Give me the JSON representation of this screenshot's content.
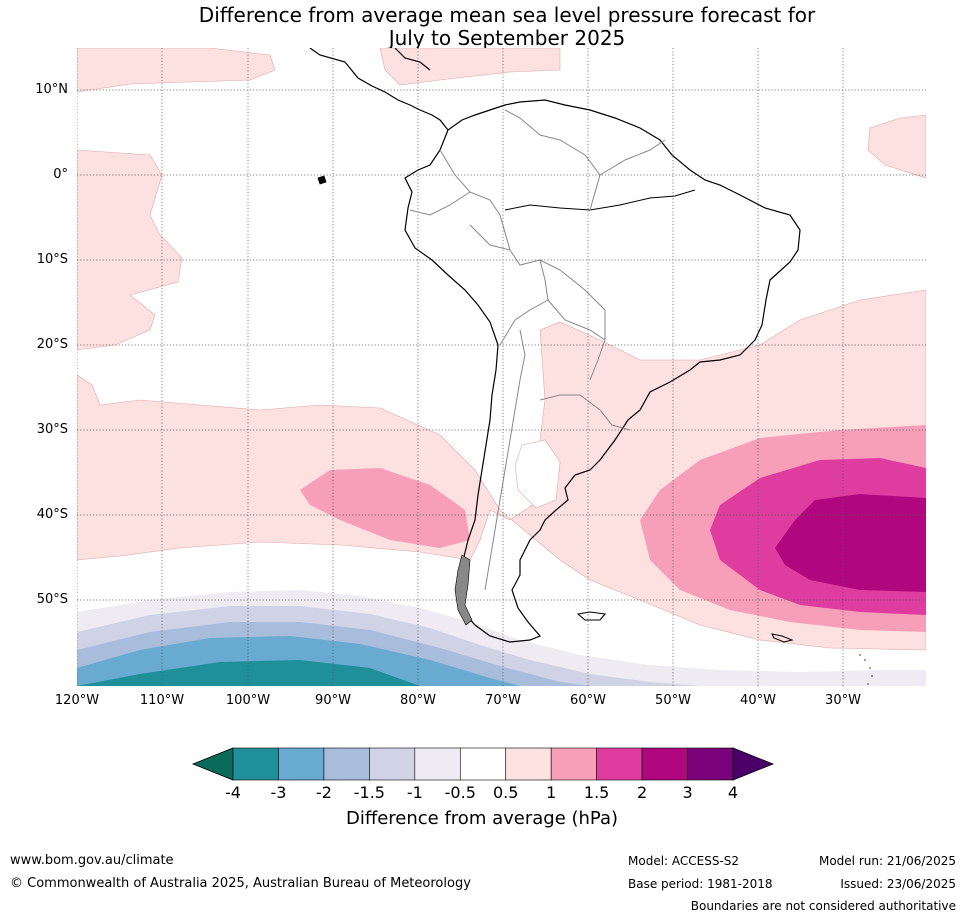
{
  "title_line1": "Difference from average mean sea level pressure forecast for",
  "title_line2": "July to September 2025",
  "lat_labels": [
    "10°N",
    "0°",
    "10°S",
    "20°S",
    "30°S",
    "40°S",
    "50°S"
  ],
  "lon_labels": [
    "120°W",
    "110°W",
    "100°W",
    "90°W",
    "80°W",
    "70°W",
    "60°W",
    "50°W",
    "40°W",
    "30°W"
  ],
  "colorbar": {
    "label": "Difference from average (hPa)",
    "ticks": [
      "-4",
      "-3",
      "-2",
      "-1.5",
      "-1",
      "-0.5",
      "0.5",
      "1",
      "1.5",
      "2",
      "3",
      "4"
    ],
    "colors": [
      "#0b6b5a",
      "#1f9099",
      "#68aad0",
      "#a8bcdc",
      "#d0d2e6",
      "#eeecf2",
      "#ffffff",
      "#fde0e0",
      "#f79fb9",
      "#df3ca0",
      "#b0077f",
      "#7a0179",
      "#4b0069"
    ]
  },
  "footer": {
    "website": "www.bom.gov.au/climate",
    "copyright": "© Commonwealth of Australia 2025, Australian Bureau of Meteorology",
    "model": "Model: ACCESS-S2",
    "base_period": "Base period: 1981-2018",
    "model_run": "Model run: 21/06/2025",
    "issued": "Issued: 23/06/2025",
    "disclaimer": "Boundaries are not considered authoritative"
  }
}
